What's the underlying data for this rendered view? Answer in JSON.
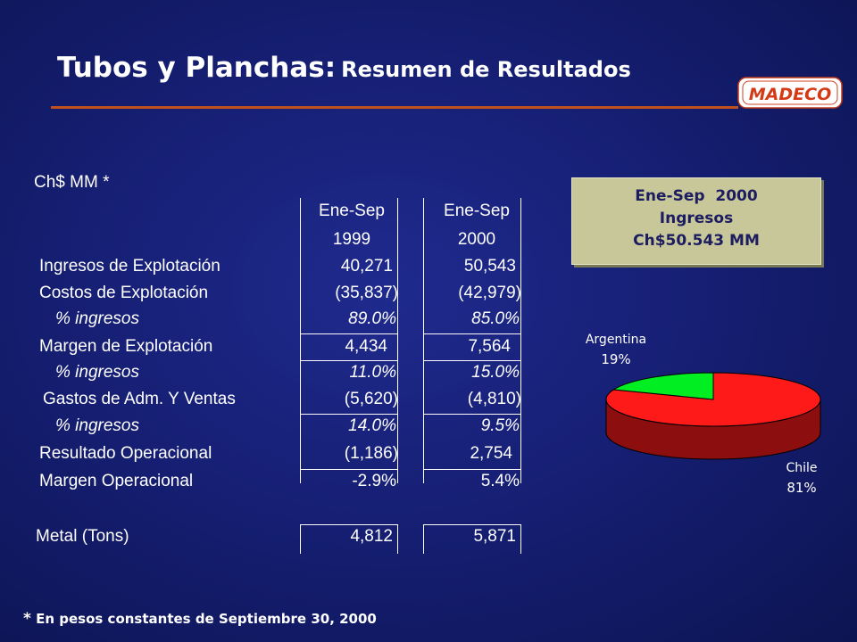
{
  "header": {
    "title_main": "Tubos y Planchas",
    "title_colon": ":",
    "title_sub": "Resumen de Resultados",
    "logo_text": "MADECO"
  },
  "table": {
    "units": "Ch$ MM *",
    "columns": [
      {
        "line1": "Ene-Sep",
        "line2": "1999"
      },
      {
        "line1": "Ene-Sep",
        "line2": "2000"
      }
    ],
    "rows": [
      {
        "label": "Ingresos de Explotación",
        "italic": false,
        "values": [
          "40,271",
          "50,543"
        ]
      },
      {
        "label": "Costos de Explotación",
        "italic": false,
        "values": [
          "(35,837)",
          "(42,979)"
        ]
      },
      {
        "label": "% ingresos",
        "italic": true,
        "values": [
          "89.0%",
          "85.0%"
        ]
      },
      {
        "label": "Margen de Explotación",
        "italic": false,
        "values": [
          "4,434",
          "7,564"
        ]
      },
      {
        "label": "% ingresos",
        "italic": true,
        "values": [
          "11.0%",
          "15.0%"
        ]
      },
      {
        "label": "Gastos de Adm. Y Ventas",
        "italic": false,
        "values": [
          "(5,620)",
          "(4,810)"
        ]
      },
      {
        "label": "% ingresos",
        "italic": true,
        "values": [
          "14.0%",
          "9.5%"
        ]
      },
      {
        "label": "Resultado Operacional",
        "italic": false,
        "values": [
          "(1,186)",
          "2,754"
        ]
      },
      {
        "label": "Margen Operacional",
        "italic": false,
        "values": [
          "-2.9%",
          "5.4%"
        ]
      }
    ],
    "metal": {
      "label": "Metal (Tons)",
      "values": [
        "4,812",
        "5,871"
      ]
    }
  },
  "summary": {
    "line1": "Ene-Sep  2000",
    "line2": "Ingresos",
    "line3": "Ch$50.543 MM"
  },
  "chart_data": {
    "type": "pie",
    "slices": [
      {
        "name": "Chile",
        "value": 81,
        "label": "81%",
        "color": "#ff1a1a"
      },
      {
        "name": "Argentina",
        "value": 19,
        "label": "19%",
        "color": "#00ee22"
      }
    ]
  },
  "footnote": {
    "star": "*",
    "text": " En pesos constantes de Septiembre 30, 2000"
  }
}
